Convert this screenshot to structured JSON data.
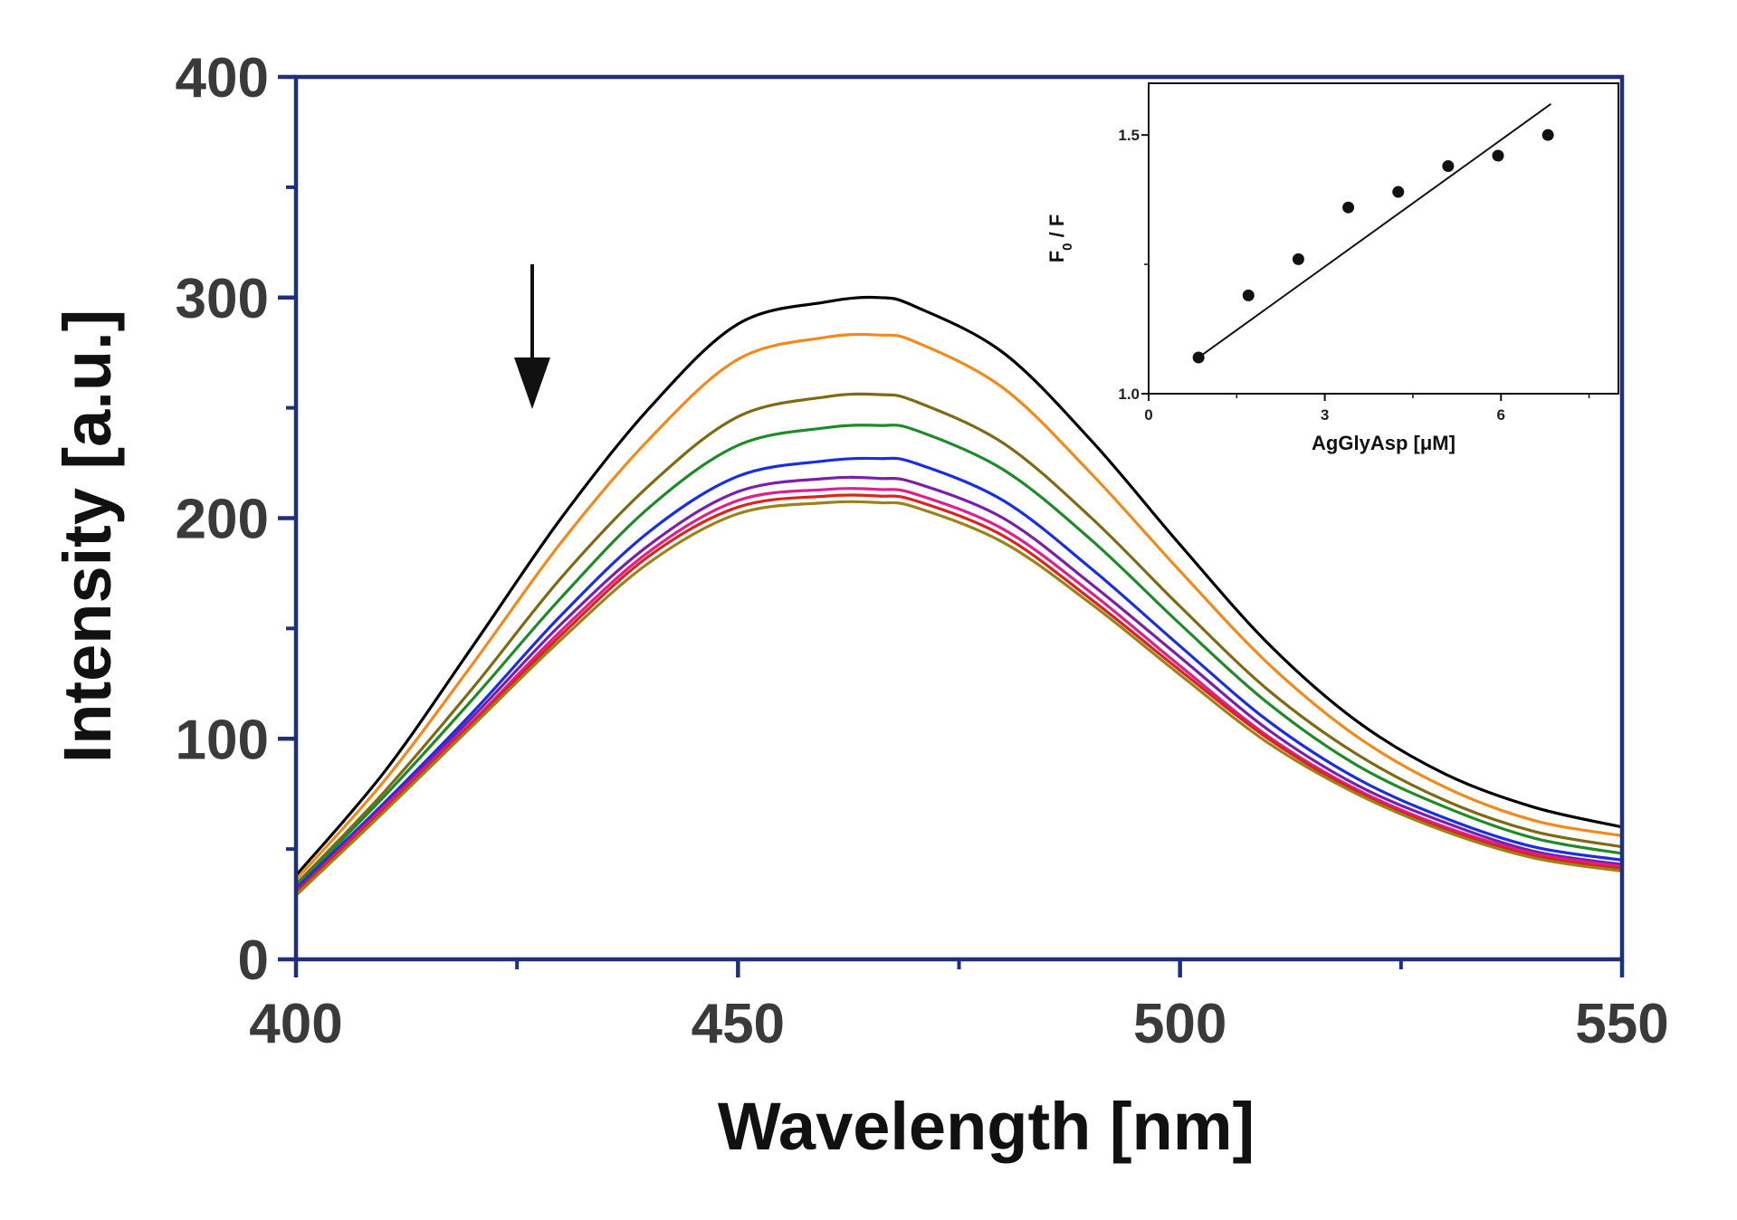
{
  "chart_data": [
    {
      "type": "line",
      "role": "main",
      "title": "",
      "xlabel": "Wavelength [nm]",
      "ylabel": "Intensity [a.u.]",
      "xlim": [
        400,
        550
      ],
      "ylim": [
        0,
        400
      ],
      "xticks": [
        400,
        450,
        500,
        550
      ],
      "yticks": [
        0,
        100,
        200,
        300,
        400
      ],
      "x_minor_step": 25,
      "y_minor_step": 50,
      "grid": false,
      "legend": "none",
      "axis_color": "#1f2f7a",
      "peak_wavelength": 466,
      "x": [
        400,
        410,
        420,
        430,
        440,
        450,
        460,
        466,
        470,
        480,
        490,
        500,
        510,
        520,
        530,
        540,
        550
      ],
      "series": [
        {
          "color": "#000000",
          "values": [
            38,
            85,
            142,
            200,
            250,
            288,
            298,
            300,
            296,
            275,
            235,
            188,
            143,
            108,
            84,
            69,
            60
          ]
        },
        {
          "color": "#f08a1c",
          "values": [
            36,
            81,
            134,
            189,
            236,
            272,
            282,
            283,
            280,
            259,
            220,
            176,
            134,
            101,
            78,
            63,
            56
          ]
        },
        {
          "color": "#7d6a12",
          "values": [
            34,
            76,
            123,
            173,
            215,
            246,
            255,
            256,
            253,
            234,
            200,
            160,
            122,
            93,
            72,
            58,
            51
          ]
        },
        {
          "color": "#1f8a2a",
          "values": [
            33,
            74,
            118,
            164,
            205,
            233,
            241,
            242,
            240,
            222,
            190,
            152,
            116,
            88,
            69,
            55,
            48
          ]
        },
        {
          "color": "#1a2ee0",
          "values": [
            32,
            71,
            112,
            156,
            194,
            219,
            226,
            227,
            225,
            208,
            177,
            142,
            108,
            82,
            64,
            51,
            45
          ]
        },
        {
          "color": "#7a1fa8",
          "values": [
            31,
            70,
            110,
            152,
            188,
            212,
            218,
            218,
            216,
            200,
            170,
            137,
            104,
            79,
            62,
            49,
            43
          ]
        },
        {
          "color": "#e0208a",
          "values": [
            30,
            69,
            108,
            149,
            185,
            208,
            213,
            213,
            211,
            195,
            166,
            133,
            101,
            77,
            60,
            48,
            42
          ]
        },
        {
          "color": "#d9261c",
          "values": [
            30,
            68,
            107,
            147,
            183,
            205,
            210,
            210,
            208,
            192,
            163,
            131,
            100,
            76,
            59,
            47,
            41
          ]
        },
        {
          "color": "#9a8418",
          "values": [
            29,
            67,
            106,
            145,
            180,
            202,
            207,
            207,
            205,
            189,
            161,
            129,
            98,
            75,
            58,
            46,
            40
          ]
        }
      ],
      "annotation": {
        "type": "arrow",
        "direction": "down",
        "meaning": "decreasing intensity"
      }
    },
    {
      "type": "scatter",
      "role": "inset",
      "xlabel": "AgGlyAsp [μM]",
      "ylabel_main": "F",
      "ylabel_sub": "0",
      "ylabel_tail": " / F",
      "xlim": [
        0,
        8
      ],
      "ylim": [
        1.0,
        1.6
      ],
      "xticks": [
        0,
        3,
        6
      ],
      "ytick_values": [
        1.0,
        1.5
      ],
      "ytick_labels": [
        "1.0",
        "1.5"
      ],
      "points": [
        {
          "x": 0.85,
          "y": 1.07
        },
        {
          "x": 1.7,
          "y": 1.19
        },
        {
          "x": 2.55,
          "y": 1.26
        },
        {
          "x": 3.4,
          "y": 1.36
        },
        {
          "x": 4.25,
          "y": 1.39
        },
        {
          "x": 5.1,
          "y": 1.44
        },
        {
          "x": 5.95,
          "y": 1.46
        },
        {
          "x": 6.8,
          "y": 1.5
        }
      ],
      "fit_line": {
        "x": [
          0.85,
          6.85
        ],
        "y": [
          1.07,
          1.56
        ]
      }
    }
  ]
}
